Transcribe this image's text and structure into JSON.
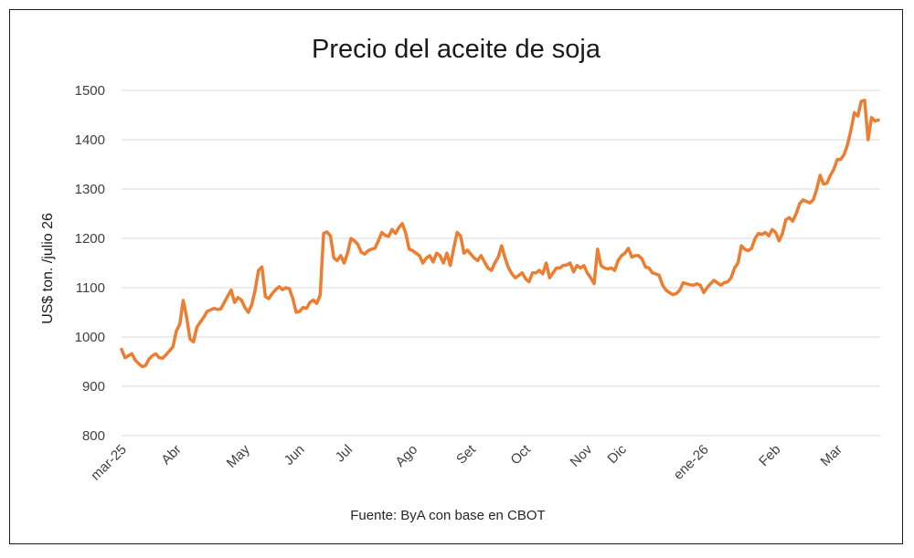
{
  "chart_data": {
    "type": "line",
    "title": "Precio del aceite de soja",
    "ylabel": "US$ ton. /julio 26",
    "xlabel": "",
    "source": "Fuente: ByA con base en CBOT",
    "ylim": [
      800,
      1500
    ],
    "yticks": [
      800,
      900,
      1000,
      1100,
      1200,
      1300,
      1400,
      1500
    ],
    "grid": true,
    "legend": "none",
    "color": "#ED7D31",
    "xticks": [
      "mar-25",
      "Abr",
      "May",
      "Jun",
      "Jul",
      "Ago",
      "Set",
      "Oct",
      "Nov",
      "Dic",
      "ene-26",
      "Feb",
      "Mar"
    ],
    "xtick_index": [
      0,
      16,
      36,
      52,
      66,
      85,
      102,
      118,
      136,
      146,
      170,
      191,
      209
    ],
    "series": [
      {
        "values": [
          975,
          958,
          962,
          966,
          953,
          946,
          940,
          942,
          955,
          962,
          966,
          958,
          957,
          964,
          972,
          980,
          1012,
          1026,
          1074,
          1040,
          996,
          990,
          1020,
          1030,
          1040,
          1052,
          1055,
          1058,
          1056,
          1057,
          1070,
          1083,
          1095,
          1070,
          1080,
          1075,
          1060,
          1050,
          1065,
          1095,
          1135,
          1142,
          1082,
          1078,
          1088,
          1096,
          1102,
          1096,
          1100,
          1098,
          1078,
          1050,
          1052,
          1060,
          1058,
          1070,
          1075,
          1068,
          1085,
          1210,
          1213,
          1205,
          1160,
          1155,
          1165,
          1150,
          1170,
          1200,
          1195,
          1188,
          1172,
          1168,
          1175,
          1178,
          1180,
          1195,
          1212,
          1206,
          1204,
          1218,
          1210,
          1222,
          1230,
          1210,
          1178,
          1175,
          1170,
          1165,
          1150,
          1160,
          1165,
          1152,
          1170,
          1165,
          1150,
          1170,
          1145,
          1180,
          1212,
          1205,
          1170,
          1176,
          1168,
          1160,
          1155,
          1165,
          1152,
          1140,
          1135,
          1150,
          1162,
          1185,
          1160,
          1140,
          1128,
          1120,
          1125,
          1130,
          1118,
          1112,
          1130,
          1130,
          1135,
          1128,
          1150,
          1120,
          1130,
          1140,
          1140,
          1145,
          1146,
          1150,
          1132,
          1145,
          1140,
          1145,
          1130,
          1120,
          1108,
          1178,
          1145,
          1140,
          1138,
          1140,
          1135,
          1155,
          1165,
          1170,
          1180,
          1162,
          1165,
          1165,
          1158,
          1142,
          1140,
          1130,
          1128,
          1125,
          1105,
          1095,
          1090,
          1086,
          1088,
          1095,
          1110,
          1108,
          1106,
          1105,
          1108,
          1105,
          1090,
          1100,
          1108,
          1115,
          1110,
          1105,
          1110,
          1112,
          1120,
          1140,
          1150,
          1185,
          1178,
          1175,
          1180,
          1200,
          1210,
          1208,
          1212,
          1205,
          1218,
          1212,
          1195,
          1210,
          1238,
          1242,
          1235,
          1250,
          1270,
          1278,
          1275,
          1272,
          1278,
          1300,
          1328,
          1310,
          1312,
          1328,
          1340,
          1360,
          1360,
          1370,
          1390,
          1420,
          1455,
          1448,
          1478,
          1480,
          1400,
          1445,
          1438,
          1440
        ]
      }
    ]
  }
}
